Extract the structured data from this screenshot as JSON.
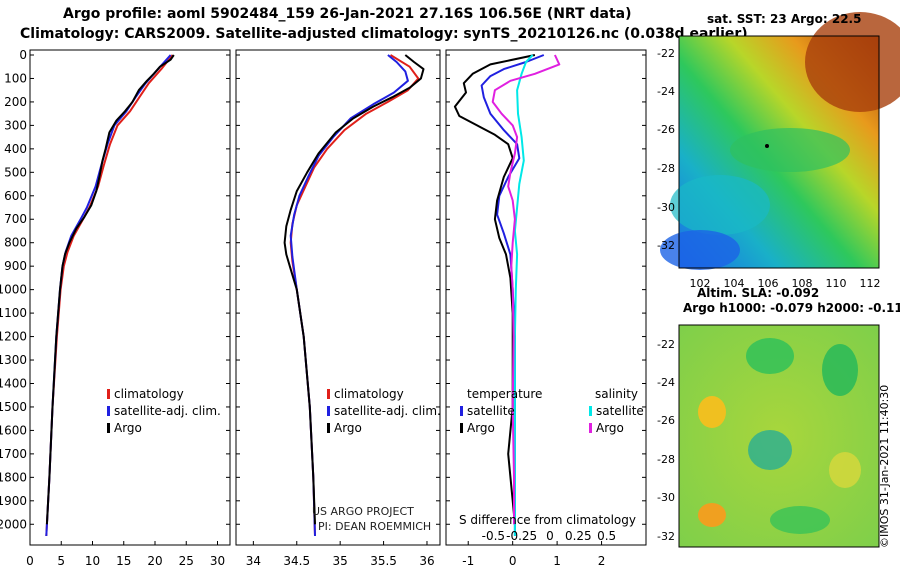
{
  "header": {
    "title_line1": "Argo profile: aoml 5902484_159 26-Jan-2021 27.16S 106.56E (NRT data)",
    "title_line2": "Climatology: CARS2009. Satellite-adjusted climatology: synTS_20210126.nc (0.038d earlier)"
  },
  "colors": {
    "climatology": "#e0201a",
    "satellite_adj": "#2020e0",
    "argo": "#000000",
    "satellite_sal": "#00e8e8",
    "argo_sal": "#e020e0"
  },
  "panel_text": {
    "t_legend": [
      "climatology",
      "satellite-adj. clim.",
      "Argo"
    ],
    "s_legend": [
      "climatology",
      "satellite-adj. clim.",
      "Argo"
    ],
    "d_legend_temp_head": "temperature",
    "d_legend_sal_head": "salinity",
    "d_legend_temp": [
      "satellite",
      "Argo"
    ],
    "d_legend_sal": [
      "satellite",
      "Argo"
    ],
    "pi_line1": "US ARGO PROJECT",
    "pi_line2": "PI: DEAN ROEMMICH",
    "diff_label": "S difference from climatology"
  },
  "maps": {
    "sst_title": "sat. SST: 23 Argo: 22.5",
    "sla_title1": "Altim. SLA: -0.092",
    "sla_title2": "Argo h1000: -0.079 h2000: -0.11",
    "lat_ticks": [
      "-22",
      "-24",
      "-26",
      "-28",
      "-30",
      "-32"
    ],
    "lon_ticks": [
      "102",
      "104",
      "106",
      "108",
      "110",
      "112"
    ],
    "credit": "©IMOS 31-Jan-2021 11:40:30"
  },
  "chart_data": [
    {
      "type": "line",
      "name": "temperature-profile",
      "xlabel": "",
      "ylabel": "depth",
      "xlim": [
        0,
        32
      ],
      "ylim": [
        2050,
        0
      ],
      "x_ticks": [
        0,
        5,
        10,
        15,
        20,
        25,
        30
      ],
      "y_ticks": [
        0,
        100,
        200,
        300,
        400,
        500,
        600,
        700,
        800,
        900,
        1000,
        1100,
        1200,
        1300,
        1400,
        1500,
        1600,
        1700,
        1800,
        1900,
        2000
      ],
      "series": [
        {
          "name": "climatology",
          "color_key": "climatology",
          "points": [
            [
              22.8,
              0
            ],
            [
              21,
              60
            ],
            [
              19,
              120
            ],
            [
              17.5,
              180
            ],
            [
              16,
              240
            ],
            [
              14,
              300
            ],
            [
              12.8,
              380
            ],
            [
              11.8,
              470
            ],
            [
              10.9,
              560
            ],
            [
              9.5,
              650
            ],
            [
              8.5,
              700
            ],
            [
              7,
              770
            ],
            [
              6,
              840
            ],
            [
              5.4,
              900
            ],
            [
              4.9,
              1000
            ],
            [
              4.3,
              1200
            ],
            [
              3.6,
              1500
            ],
            [
              3.1,
              1800
            ],
            [
              2.6,
              2050
            ]
          ]
        },
        {
          "name": "satellite-adj. clim.",
          "color_key": "satellite_adj",
          "points": [
            [
              22.5,
              0
            ],
            [
              20.5,
              60
            ],
            [
              18.5,
              120
            ],
            [
              16.9,
              180
            ],
            [
              15.4,
              240
            ],
            [
              13.5,
              300
            ],
            [
              12.4,
              380
            ],
            [
              11.4,
              470
            ],
            [
              10.5,
              560
            ],
            [
              9.1,
              650
            ],
            [
              8.1,
              700
            ],
            [
              6.6,
              770
            ],
            [
              5.7,
              840
            ],
            [
              5.2,
              900
            ],
            [
              4.8,
              1000
            ],
            [
              4.2,
              1200
            ],
            [
              3.6,
              1500
            ],
            [
              3.1,
              1800
            ],
            [
              2.6,
              2050
            ]
          ]
        },
        {
          "name": "Argo",
          "color_key": "argo",
          "points": [
            [
              23,
              0
            ],
            [
              22.5,
              20
            ],
            [
              20.8,
              50
            ],
            [
              19.8,
              80
            ],
            [
              18.7,
              110
            ],
            [
              17.4,
              150
            ],
            [
              16.4,
              200
            ],
            [
              15.2,
              240
            ],
            [
              13.8,
              280
            ],
            [
              12.7,
              330
            ],
            [
              12.1,
              400
            ],
            [
              11.6,
              450
            ],
            [
              11.1,
              520
            ],
            [
              10.6,
              580
            ],
            [
              9.8,
              640
            ],
            [
              8.7,
              690
            ],
            [
              7.4,
              740
            ],
            [
              6.3,
              800
            ],
            [
              5.6,
              850
            ],
            [
              5.2,
              900
            ],
            [
              4.8,
              1000
            ],
            [
              4.2,
              1200
            ],
            [
              3.6,
              1500
            ],
            [
              3.1,
              1800
            ],
            [
              2.7,
              2000
            ]
          ]
        }
      ]
    },
    {
      "type": "line",
      "name": "salinity-profile",
      "xlim": [
        33.8,
        36.15
      ],
      "ylim": [
        2050,
        0
      ],
      "x_ticks": [
        34,
        34.5,
        35,
        35.5,
        36
      ],
      "x_tick_labels": [
        "34",
        "34.5",
        "35",
        "35.5",
        "36"
      ],
      "series": [
        {
          "name": "climatology",
          "color_key": "climatology",
          "points": [
            [
              35.58,
              0
            ],
            [
              35.8,
              50
            ],
            [
              35.9,
              100
            ],
            [
              35.78,
              150
            ],
            [
              35.55,
              200
            ],
            [
              35.3,
              250
            ],
            [
              35.05,
              320
            ],
            [
              34.85,
              400
            ],
            [
              34.7,
              480
            ],
            [
              34.6,
              560
            ],
            [
              34.5,
              640
            ],
            [
              34.45,
              720
            ],
            [
              34.43,
              800
            ],
            [
              34.45,
              880
            ],
            [
              34.5,
              1000
            ],
            [
              34.58,
              1200
            ],
            [
              34.65,
              1500
            ],
            [
              34.69,
              1800
            ],
            [
              34.71,
              2050
            ]
          ]
        },
        {
          "name": "satellite-adj. clim.",
          "color_key": "satellite_adj",
          "points": [
            [
              35.55,
              0
            ],
            [
              35.65,
              30
            ],
            [
              35.75,
              70
            ],
            [
              35.78,
              110
            ],
            [
              35.62,
              160
            ],
            [
              35.38,
              210
            ],
            [
              35.12,
              270
            ],
            [
              34.92,
              350
            ],
            [
              34.75,
              430
            ],
            [
              34.63,
              520
            ],
            [
              34.53,
              600
            ],
            [
              34.47,
              680
            ],
            [
              34.43,
              770
            ],
            [
              34.45,
              860
            ],
            [
              34.5,
              1000
            ],
            [
              34.58,
              1200
            ],
            [
              34.65,
              1500
            ],
            [
              34.69,
              1800
            ],
            [
              34.71,
              2050
            ]
          ]
        },
        {
          "name": "Argo",
          "color_key": "argo",
          "points": [
            [
              35.75,
              0
            ],
            [
              35.85,
              30
            ],
            [
              35.96,
              60
            ],
            [
              35.93,
              100
            ],
            [
              35.8,
              140
            ],
            [
              35.6,
              180
            ],
            [
              35.38,
              220
            ],
            [
              35.15,
              270
            ],
            [
              34.95,
              330
            ],
            [
              34.75,
              420
            ],
            [
              34.62,
              500
            ],
            [
              34.5,
              580
            ],
            [
              34.43,
              660
            ],
            [
              34.38,
              730
            ],
            [
              34.36,
              800
            ],
            [
              34.38,
              850
            ],
            [
              34.42,
              900
            ],
            [
              34.5,
              1000
            ],
            [
              34.58,
              1200
            ],
            [
              34.65,
              1500
            ],
            [
              34.69,
              1800
            ],
            [
              34.71,
              2000
            ]
          ]
        }
      ]
    },
    {
      "type": "line",
      "name": "difference-from-climatology",
      "xlim": [
        -1.5,
        3.0
      ],
      "ylim": [
        2050,
        0
      ],
      "x_ticks": [
        -1,
        0,
        1,
        2
      ],
      "x_tick_labels": [
        "-1",
        "0",
        "1",
        "2"
      ],
      "secondary_ticks": [
        -0.5,
        -0.25,
        0,
        0.25,
        0.5
      ],
      "secondary_tick_labels": [
        "-0.5",
        "-0.25",
        "0",
        "0.25",
        "0.5"
      ],
      "series": [
        {
          "name": "temperature satellite",
          "color_key": "satellite_adj",
          "points": [
            [
              0.7,
              0
            ],
            [
              0.3,
              30
            ],
            [
              -0.2,
              60
            ],
            [
              -0.5,
              90
            ],
            [
              -0.7,
              130
            ],
            [
              -0.65,
              180
            ],
            [
              -0.5,
              250
            ],
            [
              -0.2,
              320
            ],
            [
              0.1,
              380
            ],
            [
              0.15,
              440
            ],
            [
              -0.1,
              520
            ],
            [
              -0.3,
              600
            ],
            [
              -0.35,
              680
            ],
            [
              -0.2,
              760
            ],
            [
              -0.05,
              850
            ],
            [
              0.0,
              1000
            ],
            [
              0.05,
              1200
            ],
            [
              0.05,
              1500
            ],
            [
              0.05,
              1800
            ],
            [
              0.05,
              2050
            ]
          ]
        },
        {
          "name": "temperature Argo",
          "color_key": "argo",
          "points": [
            [
              0.5,
              0
            ],
            [
              -0.5,
              40
            ],
            [
              -0.9,
              80
            ],
            [
              -1.1,
              120
            ],
            [
              -1.05,
              160
            ],
            [
              -1.3,
              220
            ],
            [
              -1.2,
              260
            ],
            [
              -0.8,
              300
            ],
            [
              -0.4,
              340
            ],
            [
              -0.1,
              380
            ],
            [
              0.0,
              440
            ],
            [
              -0.2,
              520
            ],
            [
              -0.35,
              620
            ],
            [
              -0.4,
              700
            ],
            [
              -0.3,
              780
            ],
            [
              -0.15,
              850
            ],
            [
              -0.05,
              950
            ],
            [
              0.0,
              1100
            ],
            [
              0.0,
              1300
            ],
            [
              0.0,
              1500
            ],
            [
              -0.1,
              1700
            ],
            [
              0.0,
              1900
            ],
            [
              0.05,
              2000
            ]
          ]
        },
        {
          "name": "salinity satellite",
          "color_key": "satellite_sal",
          "points": [
            [
              0.45,
              0
            ],
            [
              0.3,
              30
            ],
            [
              0.2,
              80
            ],
            [
              0.1,
              150
            ],
            [
              0.12,
              250
            ],
            [
              0.2,
              350
            ],
            [
              0.25,
              450
            ],
            [
              0.15,
              550
            ],
            [
              0.1,
              650
            ],
            [
              0.05,
              750
            ],
            [
              0.1,
              850
            ],
            [
              0.07,
              1000
            ],
            [
              0.05,
              1200
            ],
            [
              0.05,
              1500
            ],
            [
              0.05,
              1800
            ],
            [
              0.05,
              2050
            ]
          ]
        },
        {
          "name": "salinity Argo",
          "color_key": "argo_sal",
          "points": [
            [
              0.95,
              0
            ],
            [
              1.05,
              40
            ],
            [
              0.5,
              80
            ],
            [
              -0.05,
              110
            ],
            [
              -0.4,
              150
            ],
            [
              -0.45,
              200
            ],
            [
              -0.25,
              250
            ],
            [
              0.0,
              300
            ],
            [
              0.1,
              350
            ],
            [
              0.05,
              420
            ],
            [
              -0.05,
              500
            ],
            [
              -0.1,
              560
            ],
            [
              0.0,
              620
            ],
            [
              0.05,
              700
            ],
            [
              0.0,
              800
            ],
            [
              -0.03,
              900
            ],
            [
              0.0,
              1000
            ],
            [
              0.02,
              1200
            ],
            [
              0.0,
              1500
            ],
            [
              0.03,
              1800
            ],
            [
              0.03,
              2000
            ]
          ]
        }
      ]
    }
  ]
}
